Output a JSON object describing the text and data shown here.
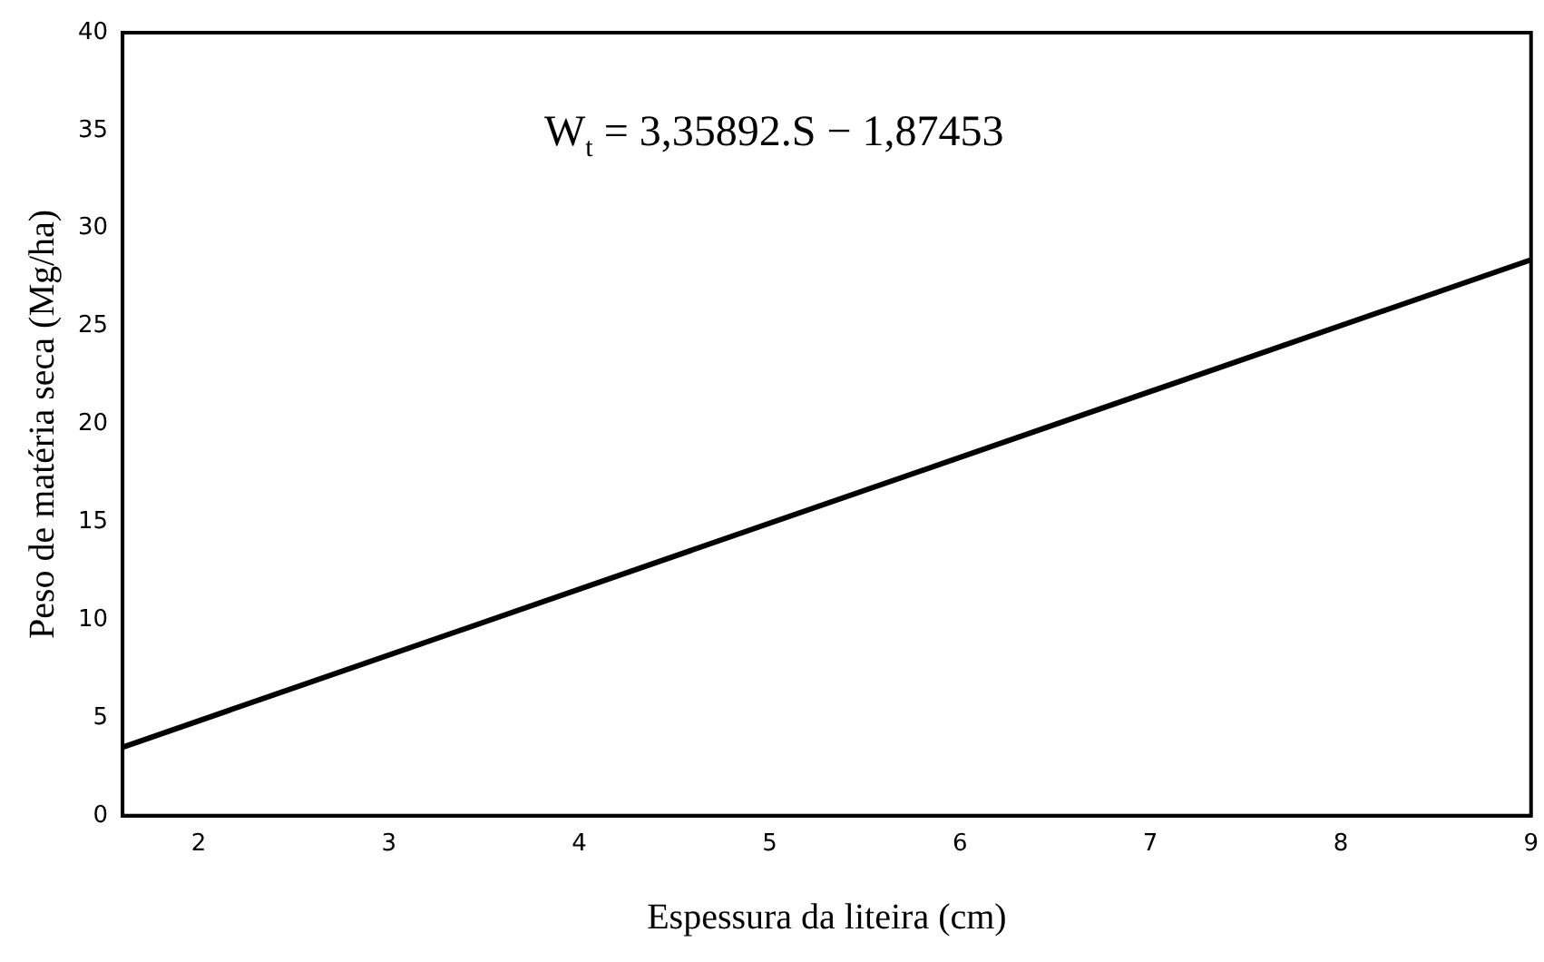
{
  "chart_data": {
    "type": "line",
    "xlabel": "Espessura da liteira (cm)",
    "ylabel": "Peso de matéria seca (Mg/ha)",
    "annotations": [
      "W$_{t}$ = 3,35892.S − 1,87453"
    ],
    "series": [
      {
        "x": [
          1.6,
          9
        ],
        "values": [
          3.5,
          28.4
        ],
        "color": "#000000"
      }
    ],
    "xlim": [
      1.6,
      9
    ],
    "xticks": [
      2,
      3,
      4,
      5,
      6,
      7,
      8,
      9
    ],
    "ylim": [
      0,
      40
    ],
    "yticks": [
      0,
      5,
      10,
      15,
      20,
      25,
      30,
      35,
      40
    ],
    "grid": false,
    "legend": false,
    "marker": "none",
    "line_style": "solid"
  }
}
